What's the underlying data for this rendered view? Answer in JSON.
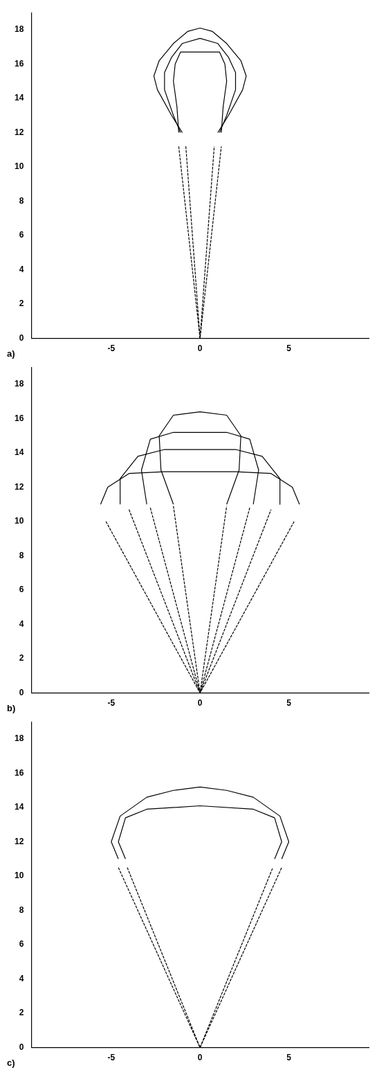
{
  "chart_data": [
    {
      "type": "line",
      "annotations": [
        "a)"
      ],
      "xlim": [
        -9.5,
        9.5
      ],
      "ylim": [
        0,
        19
      ],
      "xticks": [
        -5,
        0,
        5
      ],
      "yticks": [
        0,
        2,
        4,
        6,
        8,
        10,
        12,
        14,
        16,
        18
      ],
      "grid": false,
      "legend": false,
      "marker": "none",
      "series": [
        {
          "color": "#000000",
          "line_style": "solid",
          "x": [
            -1.0,
            -1.6,
            -2.4,
            -2.6,
            -2.3,
            -1.5,
            -0.7,
            0,
            0.7,
            1.5,
            2.3,
            2.6,
            2.4,
            1.6,
            1.0
          ],
          "values": [
            12,
            13,
            14.5,
            15.3,
            16.2,
            17.2,
            17.9,
            18.1,
            17.9,
            17.2,
            16.2,
            15.3,
            14.5,
            13,
            12
          ]
        },
        {
          "color": "#000000",
          "line_style": "solid",
          "x": [
            -1.1,
            -1.5,
            -2.0,
            -2.0,
            -1.6,
            -1.0,
            0,
            1.0,
            1.6,
            2.0,
            2.0,
            1.5,
            1.1
          ],
          "values": [
            12,
            13,
            14.5,
            15.5,
            16.4,
            17.2,
            17.5,
            17.2,
            16.4,
            15.5,
            14.5,
            13,
            12
          ]
        },
        {
          "color": "#000000",
          "line_style": "solid",
          "x": [
            -1.2,
            -1.3,
            -1.5,
            -1.4,
            -1.1,
            0,
            1.1,
            1.4,
            1.5,
            1.3,
            1.2
          ],
          "values": [
            12,
            13.5,
            15,
            16,
            16.7,
            16.7,
            16.7,
            16,
            15,
            13.5,
            12
          ]
        },
        {
          "color": "#000000",
          "line_style": "dashed",
          "x": [
            -1.2,
            0,
            1.2
          ],
          "values": [
            11.2,
            0,
            11.2
          ]
        },
        {
          "color": "#000000",
          "line_style": "dashed",
          "x": [
            -0.8,
            0,
            0.8
          ],
          "values": [
            11.2,
            0,
            11.2
          ]
        }
      ]
    },
    {
      "type": "line",
      "annotations": [
        "b)"
      ],
      "xlim": [
        -9.5,
        9.5
      ],
      "ylim": [
        0,
        19
      ],
      "xticks": [
        -5,
        0,
        5
      ],
      "yticks": [
        0,
        2,
        4,
        6,
        8,
        10,
        12,
        14,
        16,
        18
      ],
      "grid": false,
      "legend": false,
      "marker": "none",
      "series": [
        {
          "color": "#000000",
          "line_style": "solid",
          "x": [
            -5.6,
            -5.2,
            -4,
            -2,
            0,
            2,
            4,
            5.2,
            5.6
          ],
          "values": [
            11,
            12,
            12.8,
            12.9,
            12.9,
            12.9,
            12.8,
            12,
            11
          ]
        },
        {
          "color": "#000000",
          "line_style": "solid",
          "x": [
            -4.5,
            -4.5,
            -3.5,
            -2,
            0,
            2,
            3.5,
            4.5,
            4.5
          ],
          "values": [
            11,
            12.5,
            13.8,
            14.2,
            14.2,
            14.2,
            13.8,
            12.5,
            11
          ]
        },
        {
          "color": "#000000",
          "line_style": "solid",
          "x": [
            -3,
            -3.3,
            -2.8,
            -1.5,
            0,
            1.5,
            2.8,
            3.3,
            3
          ],
          "values": [
            11,
            13,
            14.8,
            15.2,
            15.2,
            15.2,
            14.8,
            13,
            11
          ]
        },
        {
          "color": "#000000",
          "line_style": "solid",
          "x": [
            -1.5,
            -2.2,
            -2.3,
            -1.5,
            0,
            1.5,
            2.3,
            2.2,
            1.5
          ],
          "values": [
            11,
            13,
            15,
            16.2,
            16.4,
            16.2,
            15,
            13,
            11
          ]
        },
        {
          "color": "#000000",
          "line_style": "dashed",
          "x": [
            -5.3,
            0,
            5.3
          ],
          "values": [
            10,
            0,
            10
          ]
        },
        {
          "color": "#000000",
          "line_style": "dashed",
          "x": [
            -4,
            0,
            4
          ],
          "values": [
            10.7,
            0,
            10.7
          ]
        },
        {
          "color": "#000000",
          "line_style": "dashed",
          "x": [
            -2.8,
            0,
            2.8
          ],
          "values": [
            10.8,
            0,
            10.8
          ]
        },
        {
          "color": "#000000",
          "line_style": "dashed",
          "x": [
            -1.5,
            0,
            1.5
          ],
          "values": [
            10.9,
            0,
            10.9
          ]
        }
      ]
    },
    {
      "type": "line",
      "annotations": [
        "c)"
      ],
      "xlim": [
        -9.5,
        9.5
      ],
      "ylim": [
        0,
        19
      ],
      "xticks": [
        -5,
        0,
        5
      ],
      "yticks": [
        0,
        2,
        4,
        6,
        8,
        10,
        12,
        14,
        16,
        18
      ],
      "grid": false,
      "legend": false,
      "marker": "none",
      "series": [
        {
          "color": "#000000",
          "line_style": "solid",
          "x": [
            -4.6,
            -5.0,
            -4.5,
            -3,
            -1.5,
            0,
            1.5,
            3,
            4.5,
            5.0,
            4.6
          ],
          "values": [
            11,
            12,
            13.5,
            14.6,
            15,
            15.2,
            15,
            14.6,
            13.5,
            12,
            11
          ]
        },
        {
          "color": "#000000",
          "line_style": "solid",
          "x": [
            -4.2,
            -4.6,
            -4.2,
            -3,
            0,
            3,
            4.2,
            4.6,
            4.2
          ],
          "values": [
            11,
            12,
            13.4,
            13.9,
            14.1,
            13.9,
            13.4,
            12,
            11
          ]
        },
        {
          "color": "#000000",
          "line_style": "dashed",
          "x": [
            -4.6,
            0,
            4.6
          ],
          "values": [
            10.5,
            0,
            10.5
          ]
        },
        {
          "color": "#000000",
          "line_style": "dashed",
          "x": [
            -4.1,
            0,
            4.1
          ],
          "values": [
            10.5,
            0,
            10.5
          ]
        }
      ]
    }
  ]
}
